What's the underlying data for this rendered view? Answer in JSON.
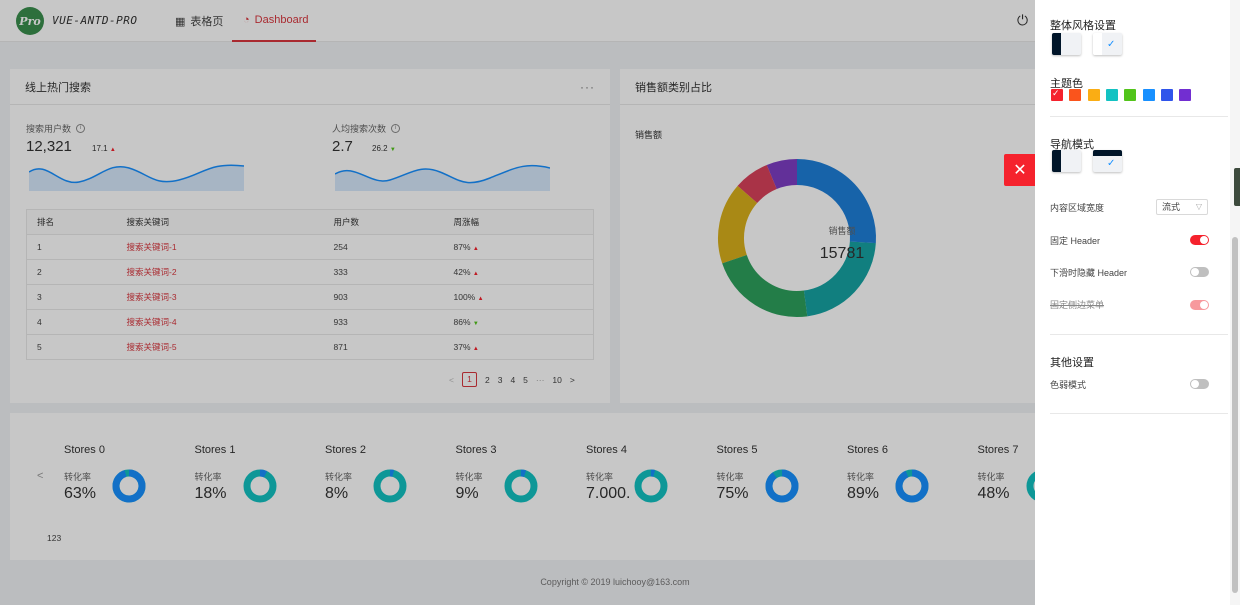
{
  "header": {
    "logo_text": "Pro",
    "brand": "VUE-ANTD-PRO",
    "nav": [
      {
        "label": "表格页",
        "icon": "table-icon"
      },
      {
        "label": "Dashboard",
        "icon": "dashboard-icon",
        "active": true
      }
    ],
    "logout_icon": "logout-icon"
  },
  "hot_search": {
    "title": "线上热门搜索",
    "more": "···",
    "stat1": {
      "label": "搜索用户数",
      "value": "12,321",
      "delta": "17.1",
      "trend": "up"
    },
    "stat2": {
      "label": "人均搜索次数",
      "value": "2.7",
      "delta": "26.2",
      "trend": "down"
    },
    "table": {
      "columns": [
        "排名",
        "搜索关键词",
        "用户数",
        "周涨幅"
      ],
      "rows": [
        {
          "rank": "1",
          "keyword": "搜索关键词-1",
          "users": "254",
          "change": "87%",
          "trend": "up"
        },
        {
          "rank": "2",
          "keyword": "搜索关键词-2",
          "users": "333",
          "change": "42%",
          "trend": "up"
        },
        {
          "rank": "3",
          "keyword": "搜索关键词-3",
          "users": "903",
          "change": "100%",
          "trend": "up"
        },
        {
          "rank": "4",
          "keyword": "搜索关键词-4",
          "users": "933",
          "change": "86%",
          "trend": "down"
        },
        {
          "rank": "5",
          "keyword": "搜索关键词-5",
          "users": "871",
          "change": "37%",
          "trend": "up"
        }
      ]
    },
    "pagination": {
      "prev": "<",
      "pages": [
        "1",
        "2",
        "3",
        "4",
        "5"
      ],
      "ellipsis": "···",
      "last": "10",
      "next": ">",
      "current": "1"
    }
  },
  "sales_share": {
    "title": "销售额类别占比",
    "label": "销售额",
    "center_label": "销售额",
    "center_value": "15781"
  },
  "chart_data": {
    "type": "pie",
    "title": "销售额类别占比",
    "values": [
      25,
      21,
      21,
      16,
      7,
      6
    ],
    "colors": [
      "#1e7fd9",
      "#16a3a3",
      "#2ea05d",
      "#d9b01c",
      "#d9425b",
      "#7e3ec5"
    ]
  },
  "stores": {
    "items": [
      {
        "name": "Stores 0",
        "rate_label": "转化率",
        "rate": "63%",
        "fraction": 0.95
      },
      {
        "name": "Stores 1",
        "rate_label": "转化率",
        "rate": "18%",
        "fraction": 0.07
      },
      {
        "name": "Stores 2",
        "rate_label": "转化率",
        "rate": "8%",
        "fraction": 0.04
      },
      {
        "name": "Stores 3",
        "rate_label": "转化率",
        "rate": "9%",
        "fraction": 0.05
      },
      {
        "name": "Stores 4",
        "rate_label": "转化率",
        "rate": "7.000.",
        "fraction": 0.04
      },
      {
        "name": "Stores 5",
        "rate_label": "转化率",
        "rate": "75%",
        "fraction": 0.9
      },
      {
        "name": "Stores 6",
        "rate_label": "转化率",
        "rate": "89%",
        "fraction": 0.93
      },
      {
        "name": "Stores 7",
        "rate_label": "转化率",
        "rate": "48%",
        "fraction": 0.5
      }
    ],
    "prev_arrow": "<",
    "footer": "123"
  },
  "copyright": "Copyright © 2019 luichooy@163.com",
  "settings": {
    "style_title": "整体风格设置",
    "theme_title": "主题色",
    "theme_colors": [
      "#f5222d",
      "#fa541c",
      "#faad14",
      "#13c2c2",
      "#52c41a",
      "#1890ff",
      "#2f54eb",
      "#722ed1"
    ],
    "nav_title": "导航模式",
    "content_width_label": "内容区域宽度",
    "content_width_value": "流式",
    "fixed_header": "固定 Header",
    "hide_header": "下滑时隐藏 Header",
    "fixed_sidebar": "固定侧边菜单",
    "other_title": "其他设置",
    "weak_mode": "色弱模式",
    "close_icon": "close-icon"
  }
}
